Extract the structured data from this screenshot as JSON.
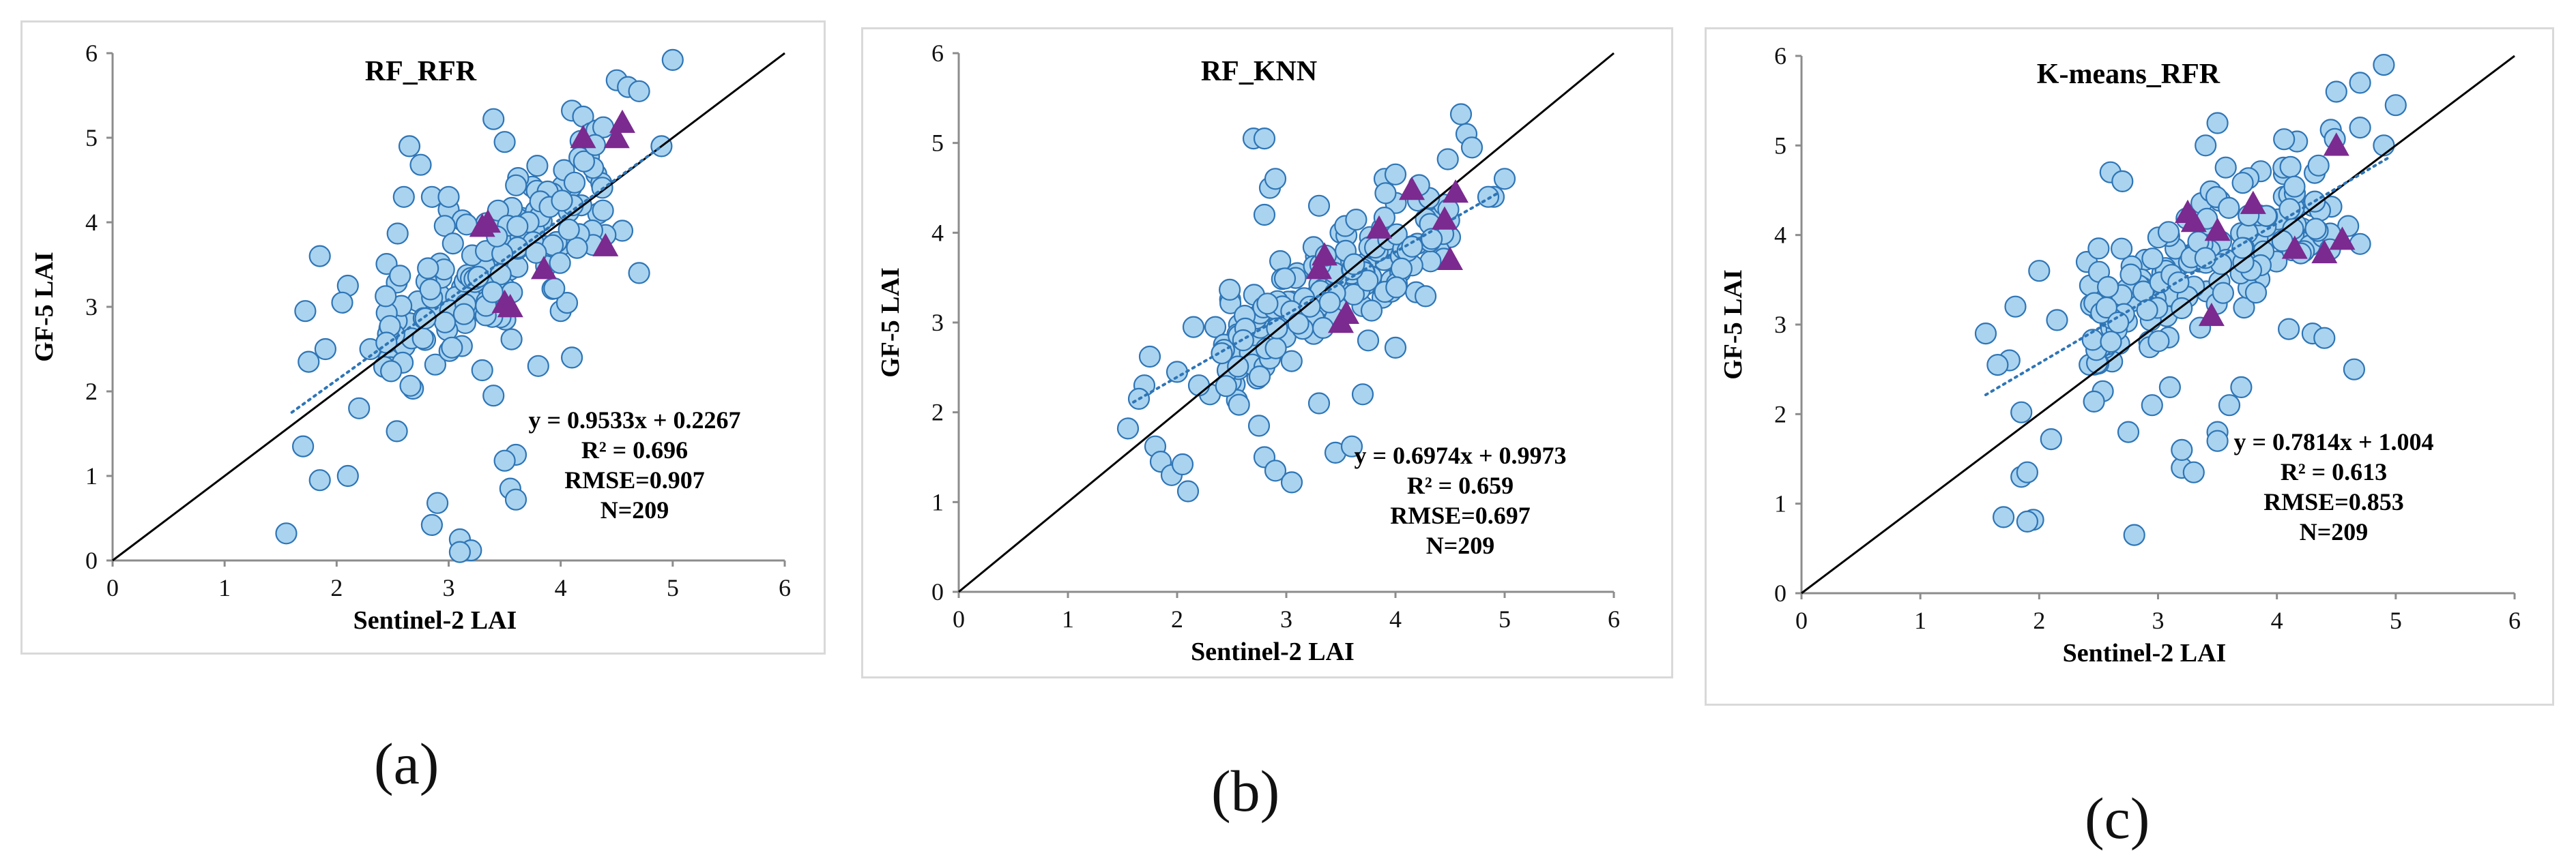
{
  "figure": {
    "panels": [
      {
        "label": "(a)"
      },
      {
        "label": "(b)"
      },
      {
        "label": "(c)"
      }
    ]
  },
  "colors": {
    "point_fill": "#a9d3ef",
    "point_stroke": "#2e75b6",
    "triangle": "#7b2a8f",
    "trend": "#2e75b6",
    "one_to_one": "#000000",
    "frame": "#d9d9d9"
  },
  "chart_data": [
    {
      "type": "scatter",
      "title": "RF_RFR",
      "xlabel": "Sentinel-2 LAI",
      "ylabel": "GF-5 LAI",
      "xlim": [
        0,
        6
      ],
      "ylim": [
        0,
        6
      ],
      "xticks": [
        "0",
        "1",
        "2",
        "3",
        "4",
        "5",
        "6"
      ],
      "yticks": [
        "0",
        "1",
        "2",
        "3",
        "4",
        "5",
        "6"
      ],
      "equation": "y = 0.9533x + 0.2267",
      "r2": "R² = 0.696",
      "rmse": "RMSE=0.907",
      "n": "N=209",
      "trend": {
        "slope": 0.9533,
        "intercept": 0.2267,
        "x_range": [
          1.6,
          4.9
        ]
      },
      "seed": 11,
      "circles": [
        [
          1.55,
          0.32
        ],
        [
          1.72,
          2.95
        ],
        [
          1.85,
          3.6
        ],
        [
          1.9,
          2.5
        ],
        [
          2.1,
          3.25
        ],
        [
          2.1,
          1.0
        ],
        [
          2.2,
          1.8
        ],
        [
          2.6,
          4.3
        ],
        [
          2.65,
          4.9
        ],
        [
          2.75,
          4.68
        ],
        [
          2.85,
          4.3
        ],
        [
          3.4,
          5.22
        ],
        [
          3.5,
          4.95
        ],
        [
          4.1,
          5.32
        ],
        [
          4.2,
          5.25
        ],
        [
          4.5,
          5.68
        ],
        [
          4.6,
          5.6
        ],
        [
          4.7,
          5.55
        ],
        [
          5.0,
          5.92
        ],
        [
          4.9,
          4.9
        ],
        [
          4.7,
          3.4
        ],
        [
          4.55,
          3.9
        ],
        [
          4.1,
          2.4
        ],
        [
          3.8,
          2.3
        ],
        [
          3.6,
          1.25
        ],
        [
          3.5,
          1.18
        ],
        [
          3.55,
          0.85
        ],
        [
          3.6,
          0.72
        ],
        [
          2.9,
          0.68
        ],
        [
          2.85,
          0.42
        ],
        [
          3.1,
          0.25
        ],
        [
          3.2,
          0.12
        ],
        [
          3.1,
          0.1
        ],
        [
          1.7,
          1.35
        ],
        [
          1.75,
          2.35
        ],
        [
          1.85,
          0.95
        ],
        [
          2.05,
          3.05
        ],
        [
          2.3,
          2.5
        ],
        [
          2.5,
          2.7
        ],
        [
          3.0,
          4.15
        ],
        [
          3.0,
          4.3
        ],
        [
          4.4,
          3.85
        ],
        [
          4.0,
          2.95
        ],
        [
          3.3,
          2.25
        ],
        [
          3.4,
          1.95
        ]
      ],
      "random_circles": {
        "count": 160,
        "x_range": [
          2.4,
          4.4
        ],
        "noise": 0.6,
        "slope": 0.95,
        "intercept": 0.25
      },
      "triangles": [
        [
          3.3,
          3.95
        ],
        [
          3.35,
          4.0
        ],
        [
          3.5,
          3.05
        ],
        [
          3.55,
          3.0
        ],
        [
          3.85,
          3.45
        ],
        [
          4.2,
          5.0
        ],
        [
          4.5,
          5.0
        ],
        [
          4.55,
          5.18
        ],
        [
          4.4,
          3.72
        ]
      ]
    },
    {
      "type": "scatter",
      "title": "RF_KNN",
      "xlabel": "Sentinel-2 LAI",
      "ylabel": "GF-5 LAI",
      "xlim": [
        0,
        6
      ],
      "ylim": [
        0,
        6
      ],
      "xticks": [
        "0",
        "1",
        "2",
        "3",
        "4",
        "5",
        "6"
      ],
      "yticks": [
        "0",
        "1",
        "2",
        "3",
        "4",
        "5",
        "6"
      ],
      "equation": "y = 0.6974x + 0.9973",
      "r2": "R² = 0.659",
      "rmse": "RMSE=0.697",
      "n": "N=209",
      "trend": {
        "slope": 0.6974,
        "intercept": 0.9973,
        "x_range": [
          1.6,
          4.95
        ]
      },
      "seed": 23,
      "circles": [
        [
          1.55,
          1.82
        ],
        [
          1.7,
          2.3
        ],
        [
          1.75,
          2.62
        ],
        [
          1.8,
          1.62
        ],
        [
          1.85,
          1.45
        ],
        [
          1.95,
          1.3
        ],
        [
          2.0,
          2.45
        ],
        [
          2.05,
          1.42
        ],
        [
          2.1,
          1.12
        ],
        [
          2.15,
          2.95
        ],
        [
          2.3,
          2.2
        ],
        [
          2.7,
          5.05
        ],
        [
          2.8,
          5.05
        ],
        [
          2.8,
          4.2
        ],
        [
          2.85,
          4.5
        ],
        [
          2.9,
          4.6
        ],
        [
          2.75,
          1.85
        ],
        [
          2.8,
          1.5
        ],
        [
          2.9,
          1.35
        ],
        [
          3.05,
          1.22
        ],
        [
          3.3,
          2.1
        ],
        [
          3.45,
          1.55
        ],
        [
          3.6,
          1.62
        ],
        [
          3.7,
          2.2
        ],
        [
          3.75,
          2.8
        ],
        [
          4.0,
          2.72
        ],
        [
          4.6,
          5.32
        ],
        [
          4.65,
          5.1
        ],
        [
          4.7,
          4.95
        ],
        [
          5.0,
          4.6
        ],
        [
          4.9,
          4.4
        ],
        [
          4.85,
          4.4
        ],
        [
          4.5,
          3.95
        ],
        [
          4.4,
          3.8
        ],
        [
          3.9,
          4.6
        ],
        [
          4.0,
          4.65
        ],
        [
          2.35,
          2.95
        ],
        [
          2.5,
          2.65
        ],
        [
          1.65,
          2.15
        ],
        [
          2.2,
          2.3
        ],
        [
          3.3,
          4.3
        ],
        [
          3.1,
          3.55
        ]
      ],
      "random_circles": {
        "count": 165,
        "x_range": [
          2.4,
          4.5
        ],
        "noise": 0.45,
        "slope": 0.7,
        "intercept": 1.0
      },
      "triangles": [
        [
          3.3,
          3.6
        ],
        [
          3.35,
          3.75
        ],
        [
          3.5,
          3.0
        ],
        [
          3.55,
          3.1
        ],
        [
          3.85,
          4.05
        ],
        [
          4.15,
          4.48
        ],
        [
          4.45,
          4.15
        ],
        [
          4.5,
          3.7
        ],
        [
          4.55,
          4.45
        ]
      ]
    },
    {
      "type": "scatter",
      "title": "K-means_RFR",
      "xlabel": "Sentinel-2 LAI",
      "ylabel": "GF-5 LAI",
      "xlim": [
        0,
        6
      ],
      "ylim": [
        0,
        6
      ],
      "xticks": [
        "0",
        "1",
        "2",
        "3",
        "4",
        "5",
        "6"
      ],
      "yticks": [
        "0",
        "1",
        "2",
        "3",
        "4",
        "5",
        "6"
      ],
      "equation": "y = 0.7814x + 1.004",
      "r2": "R² = 0.613",
      "rmse": "RMSE=0.853",
      "n": "N=209",
      "trend": {
        "slope": 0.7814,
        "intercept": 1.004,
        "x_range": [
          1.55,
          4.95
        ]
      },
      "seed": 37,
      "circles": [
        [
          1.55,
          2.9
        ],
        [
          1.7,
          0.85
        ],
        [
          1.8,
          3.2
        ],
        [
          1.85,
          1.3
        ],
        [
          1.9,
          1.35
        ],
        [
          1.95,
          0.82
        ],
        [
          1.9,
          0.8
        ],
        [
          1.85,
          2.02
        ],
        [
          2.0,
          3.6
        ],
        [
          2.1,
          1.72
        ],
        [
          2.15,
          3.05
        ],
        [
          2.6,
          4.7
        ],
        [
          2.7,
          4.6
        ],
        [
          2.8,
          0.65
        ],
        [
          3.2,
          1.4
        ],
        [
          3.3,
          1.35
        ],
        [
          3.2,
          1.6
        ],
        [
          3.5,
          1.8
        ],
        [
          3.5,
          1.7
        ],
        [
          3.6,
          2.1
        ],
        [
          3.7,
          2.3
        ],
        [
          4.1,
          2.95
        ],
        [
          4.3,
          2.9
        ],
        [
          4.4,
          2.85
        ],
        [
          4.65,
          2.5
        ],
        [
          4.5,
          5.6
        ],
        [
          4.7,
          5.7
        ],
        [
          4.9,
          5.9
        ],
        [
          5.0,
          5.45
        ],
        [
          4.9,
          5.0
        ],
        [
          4.7,
          5.2
        ],
        [
          3.5,
          5.25
        ],
        [
          3.4,
          5.0
        ],
        [
          4.6,
          4.1
        ],
        [
          4.7,
          3.9
        ],
        [
          1.75,
          2.6
        ],
        [
          1.65,
          2.55
        ],
        [
          2.4,
          3.7
        ],
        [
          2.5,
          3.85
        ],
        [
          3.1,
          2.3
        ],
        [
          2.95,
          2.1
        ],
        [
          2.75,
          1.8
        ]
      ],
      "random_circles": {
        "count": 165,
        "x_range": [
          2.4,
          4.5
        ],
        "noise": 0.5,
        "slope": 0.78,
        "intercept": 1.0
      },
      "triangles": [
        [
          3.25,
          4.25
        ],
        [
          3.3,
          4.15
        ],
        [
          3.45,
          3.1
        ],
        [
          3.5,
          4.05
        ],
        [
          3.8,
          4.35
        ],
        [
          4.15,
          3.85
        ],
        [
          4.4,
          3.8
        ],
        [
          4.5,
          5.0
        ],
        [
          4.55,
          3.95
        ]
      ]
    }
  ]
}
